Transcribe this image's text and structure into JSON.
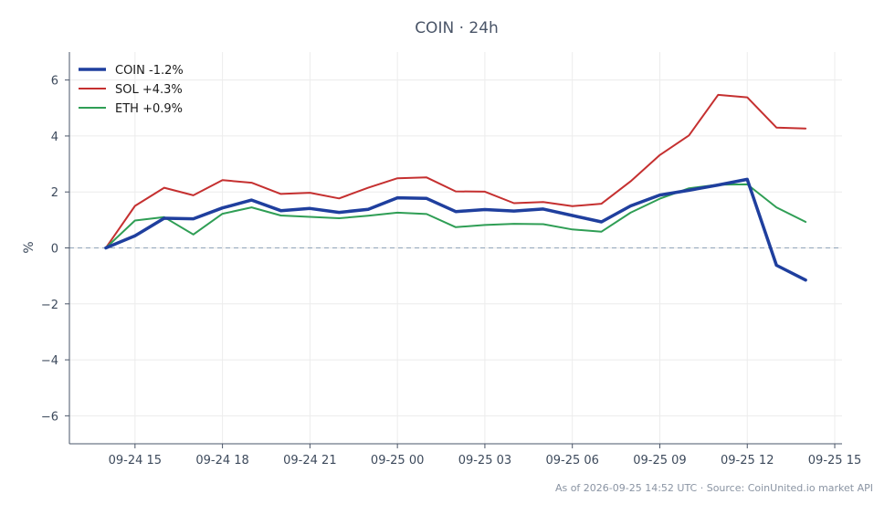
{
  "chart_data": {
    "type": "line",
    "title": "COIN · 24h",
    "ylabel": "%",
    "ylim": [
      -7,
      7
    ],
    "yticks": [
      6,
      4,
      2,
      0,
      -2,
      -4,
      -6
    ],
    "ytick_labels": [
      "6",
      "4",
      "2",
      "0",
      "−2",
      "−4",
      "−6"
    ],
    "xlim": [
      "2026-09-24 12:45",
      "2026-09-25 15:15"
    ],
    "xticks": [
      "2026-09-24 15:00",
      "2026-09-24 18:00",
      "2026-09-24 21:00",
      "2026-09-25 00:00",
      "2026-09-25 03:00",
      "2026-09-25 06:00",
      "2026-09-25 09:00",
      "2026-09-25 12:00",
      "2026-09-25 15:00"
    ],
    "xtick_labels": [
      "09-24 15",
      "09-24 18",
      "09-24 21",
      "09-25 00",
      "09-25 03",
      "09-25 06",
      "09-25 09",
      "09-25 12",
      "09-25 15"
    ],
    "x": [
      "2026-09-24 14:00",
      "2026-09-24 15:00",
      "2026-09-24 16:00",
      "2026-09-24 17:00",
      "2026-09-24 18:00",
      "2026-09-24 19:00",
      "2026-09-24 20:00",
      "2026-09-24 21:00",
      "2026-09-24 22:00",
      "2026-09-24 23:00",
      "2026-09-25 00:00",
      "2026-09-25 01:00",
      "2026-09-25 02:00",
      "2026-09-25 03:00",
      "2026-09-25 04:00",
      "2026-09-25 05:00",
      "2026-09-25 06:00",
      "2026-09-25 07:00",
      "2026-09-25 08:00",
      "2026-09-25 09:00",
      "2026-09-25 10:00",
      "2026-09-25 11:00",
      "2026-09-25 12:00",
      "2026-09-25 13:00",
      "2026-09-25 14:00"
    ],
    "series": [
      {
        "name": "SOL +4.3%",
        "color": "#c53030",
        "width": 2,
        "values": [
          0,
          1.5,
          2.15,
          1.88,
          2.42,
          2.33,
          1.93,
          1.97,
          1.77,
          2.15,
          2.49,
          2.52,
          2.02,
          2.01,
          1.6,
          1.64,
          1.49,
          1.58,
          2.38,
          3.32,
          4.02,
          5.47,
          5.38,
          4.3,
          4.27
        ]
      },
      {
        "name": "ETH +0.9%",
        "color": "#2f9e55",
        "width": 2,
        "values": [
          0,
          0.98,
          1.1,
          0.48,
          1.22,
          1.45,
          1.16,
          1.11,
          1.06,
          1.15,
          1.26,
          1.21,
          0.74,
          0.82,
          0.86,
          0.85,
          0.66,
          0.58,
          1.26,
          1.76,
          2.13,
          2.26,
          2.27,
          1.45,
          0.93
        ]
      },
      {
        "name": "COIN -1.2%",
        "color": "#1f3f9e",
        "width": 3.5,
        "values": [
          0,
          0.43,
          1.06,
          1.04,
          1.43,
          1.71,
          1.33,
          1.41,
          1.27,
          1.38,
          1.79,
          1.77,
          1.3,
          1.37,
          1.32,
          1.39,
          1.16,
          0.93,
          1.5,
          1.89,
          2.06,
          2.25,
          2.45,
          -0.62,
          -1.15
        ]
      }
    ],
    "legend": [
      "COIN -1.2%",
      "SOL +4.3%",
      "ETH +0.9%"
    ],
    "legend_position": "top-left",
    "grid": true,
    "zero_line": true,
    "zero_line_color": "#8fa3b8"
  },
  "footer": "As of 2026-09-25 14:52 UTC · Source: CoinUnited.io market API"
}
